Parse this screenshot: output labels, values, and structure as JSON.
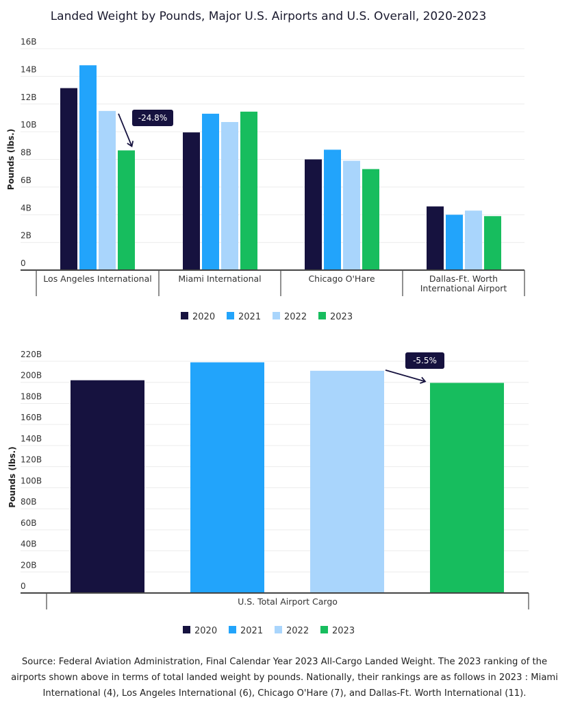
{
  "title": "Landed Weight by Pounds, Major U.S. Airports and U.S. Overall, 2020-2023",
  "colors": {
    "2020": "#16123f",
    "2021": "#22a4fb",
    "2022": "#a9d5fc",
    "2023": "#17bd5e"
  },
  "chart_data": [
    {
      "type": "bar",
      "categories": [
        "Los Angeles International",
        "Miami International",
        "Chicago O'Hare",
        "Dallas-Ft. Worth International Airport"
      ],
      "series": [
        {
          "name": "2020",
          "values": [
            13.15,
            9.95,
            8.0,
            4.6
          ]
        },
        {
          "name": "2021",
          "values": [
            14.8,
            11.3,
            8.7,
            4.0
          ]
        },
        {
          "name": "2022",
          "values": [
            11.5,
            10.7,
            7.9,
            4.3
          ]
        },
        {
          "name": "2023",
          "values": [
            8.65,
            11.45,
            7.3,
            3.9
          ]
        }
      ],
      "ylabel": "Pounds (lbs.)",
      "ylim": [
        0,
        16
      ],
      "yticks": [
        "0",
        "2B",
        "4B",
        "6B",
        "8B",
        "10B",
        "12B",
        "14B",
        "16B"
      ],
      "unit": "billions of pounds",
      "grid": true,
      "legend": "bottom",
      "annotation": {
        "text": "-24.8%",
        "category": "Los Angeles International",
        "from": "2022",
        "to": "2023"
      }
    },
    {
      "type": "bar",
      "categories": [
        "U.S. Total Airport Cargo"
      ],
      "series": [
        {
          "name": "2020",
          "values": [
            202
          ]
        },
        {
          "name": "2021",
          "values": [
            219
          ]
        },
        {
          "name": "2022",
          "values": [
            211
          ]
        },
        {
          "name": "2023",
          "values": [
            199.5
          ]
        }
      ],
      "ylabel": "Pounds (lbs.)",
      "ylim": [
        0,
        220
      ],
      "yticks": [
        "0",
        "20B",
        "40B",
        "60B",
        "80B",
        "100B",
        "120B",
        "140B",
        "160B",
        "180B",
        "200B",
        "220B"
      ],
      "unit": "billions of pounds",
      "grid": true,
      "legend": "bottom",
      "annotation": {
        "text": "-5.5%",
        "from": "2022",
        "to": "2023"
      }
    }
  ],
  "source": [
    "Source: Federal Aviation Administration, Final Calendar Year 2023 All-Cargo Landed Weight. The 2023 ranking of the",
    "airports shown above in terms of total landed weight by pounds. Nationally, their rankings are as follows in 2023 : Miami",
    "International (4), Los Angeles International (6), Chicago O'Hare (7), and Dallas-Ft. Worth International (11)."
  ]
}
